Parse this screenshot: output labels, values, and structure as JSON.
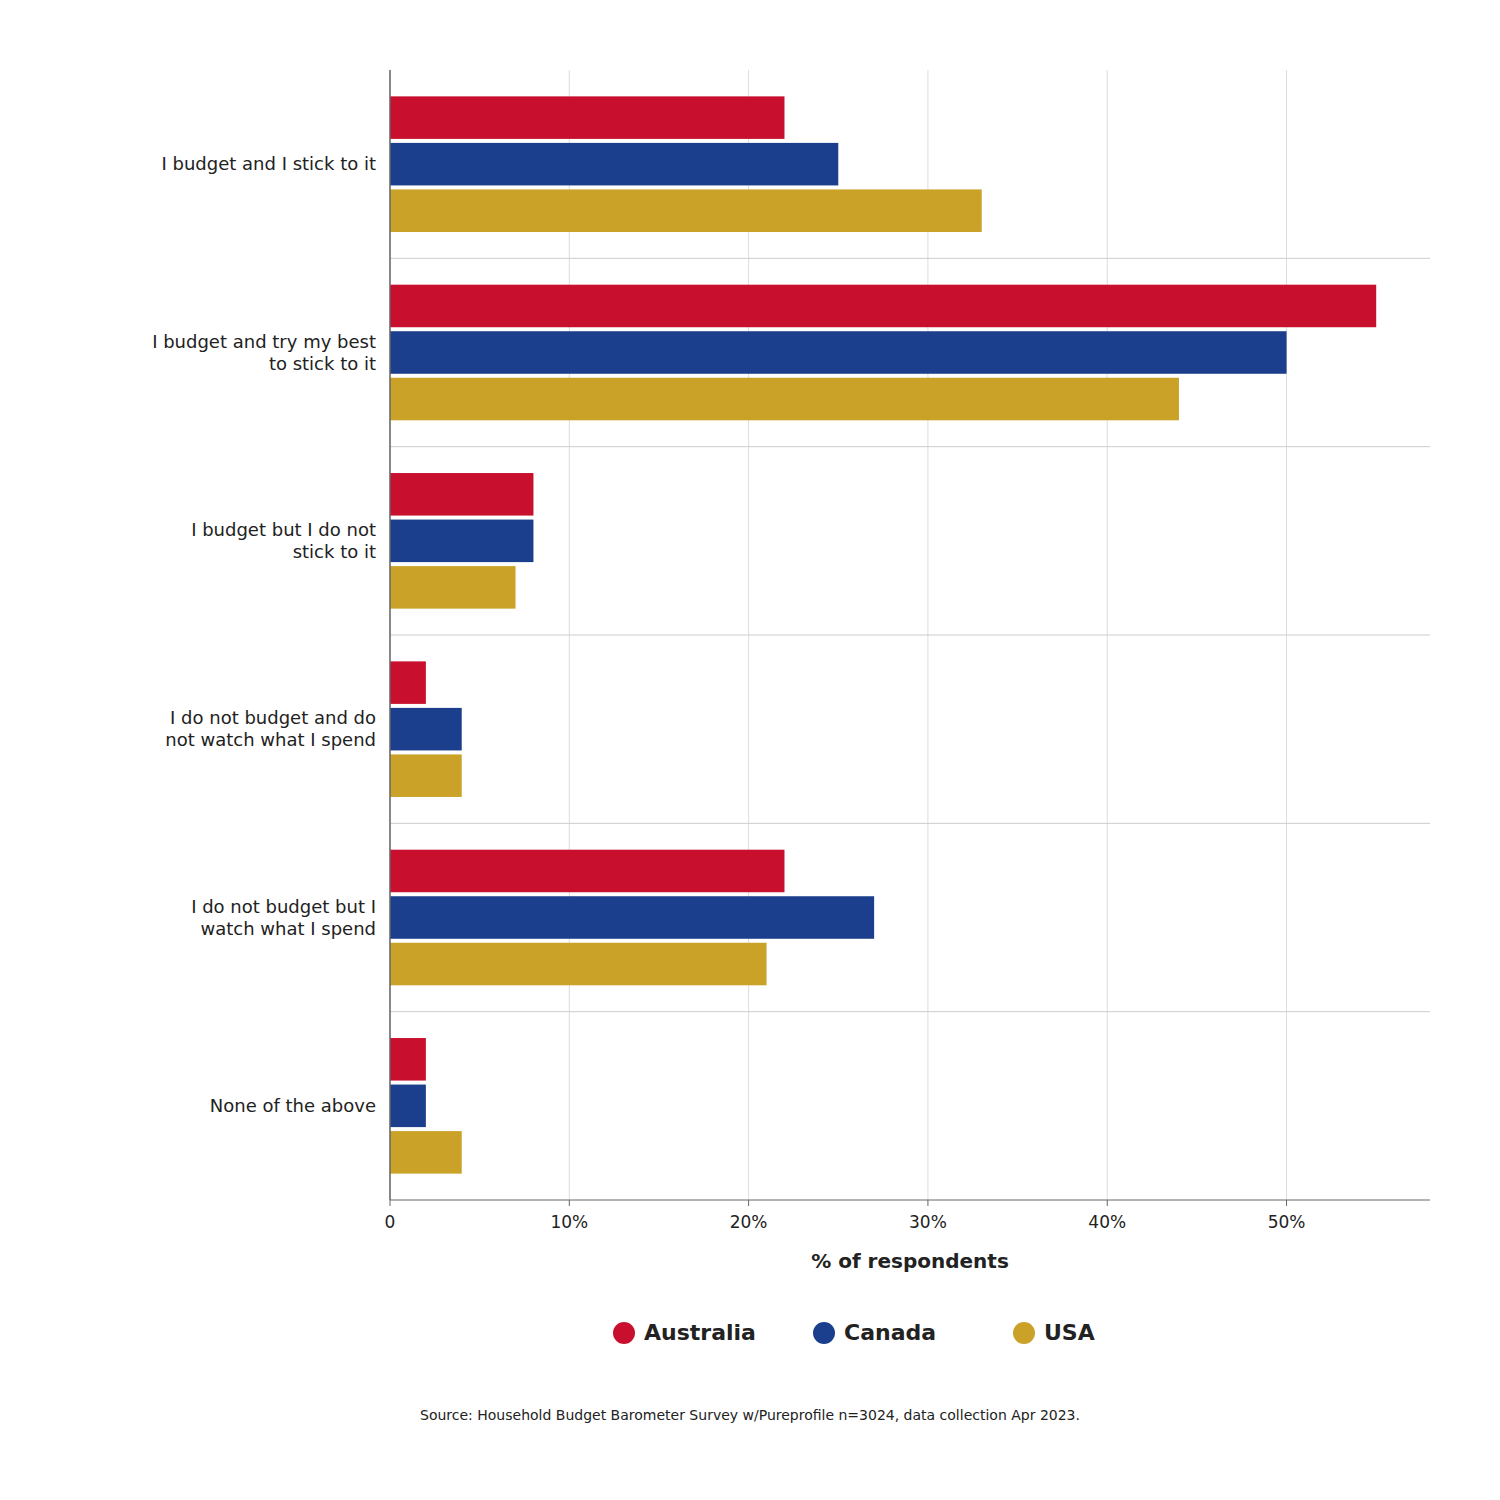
{
  "chart_data": {
    "type": "bar",
    "orientation": "horizontal",
    "categories": [
      "I budget and I stick to it",
      "I budget and try my best\nto stick to it",
      "I budget but I do not\nstick to it",
      "I do not budget and do\nnot watch what I spend",
      "I do not budget but I\nwatch what I spend",
      "None of the above"
    ],
    "series": [
      {
        "name": "Australia",
        "color": "#C8102E",
        "values": [
          22,
          55,
          8,
          2,
          22,
          2
        ]
      },
      {
        "name": "Canada",
        "color": "#1B3F8C",
        "values": [
          25,
          50,
          8,
          4,
          27,
          2
        ]
      },
      {
        "name": "USA",
        "color": "#C9A227",
        "values": [
          33,
          44,
          7,
          4,
          21,
          4
        ]
      }
    ],
    "xlim": [
      0,
      58
    ],
    "xticks": [
      0,
      {
        "value": 10,
        "label": "10%"
      },
      {
        "value": 20,
        "label": "20%"
      },
      {
        "value": 30,
        "label": "30%"
      },
      {
        "value": 40,
        "label": "40%"
      },
      {
        "value": 50,
        "label": "50%"
      }
    ],
    "xlabel": "% of respondents",
    "grid": true,
    "legend": "bottom",
    "annotations": [
      "Source: Household Budget Barometer Survey w/Pureprofile n=3024, data collection Apr 2023."
    ]
  }
}
